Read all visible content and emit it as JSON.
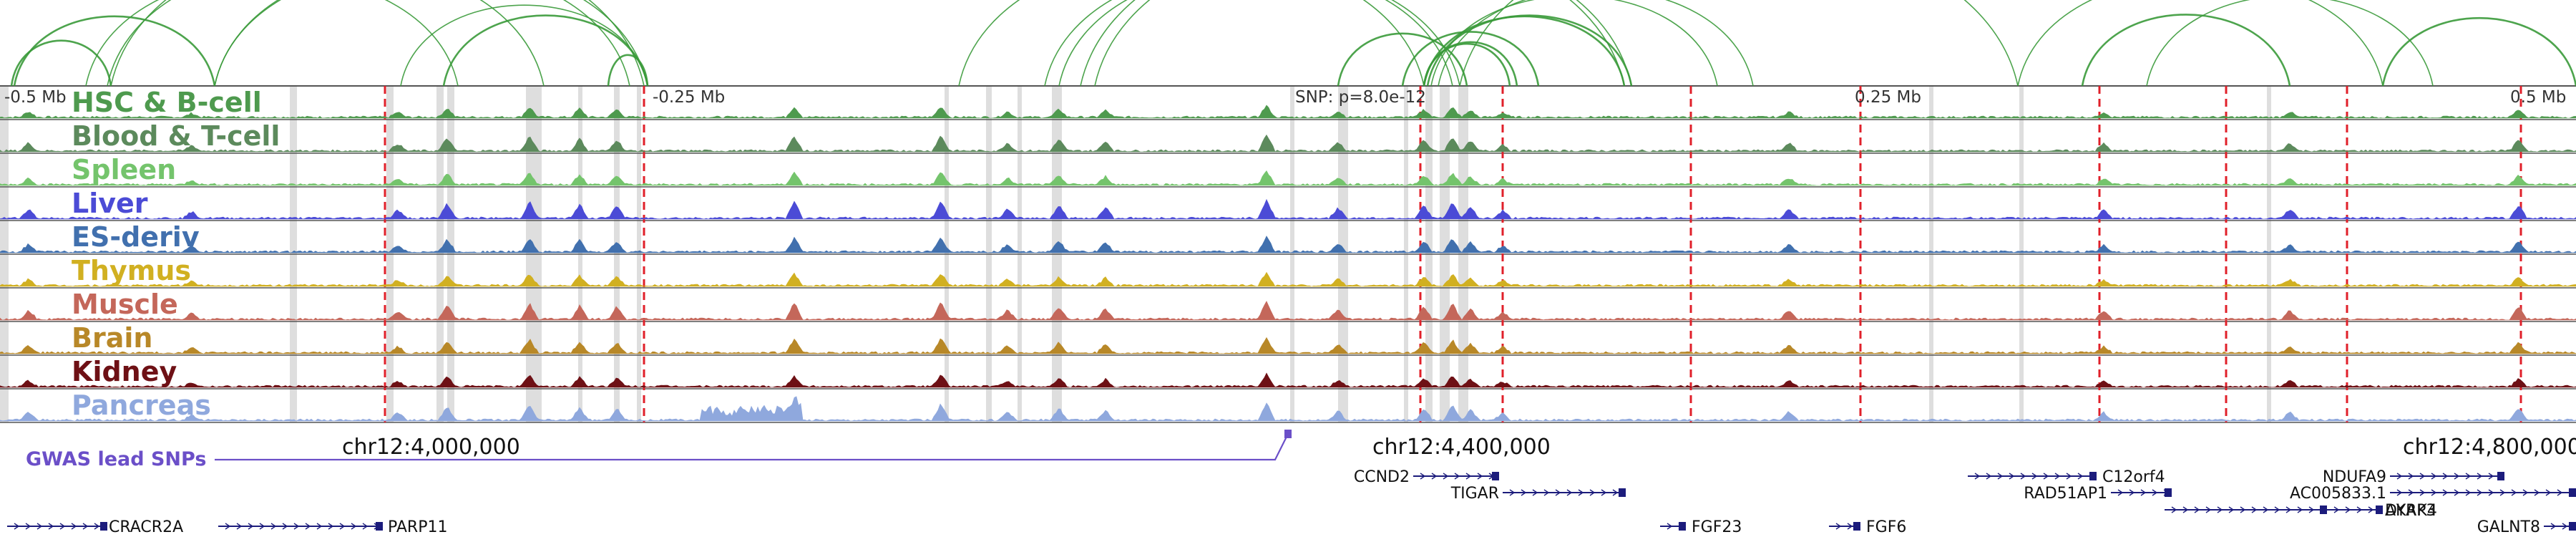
{
  "chart_data": {
    "type": "genome-browser-tracks",
    "scale_labels": [
      "-0.5 Mb",
      "-0.25 Mb",
      "SNP: p=8.0e-12",
      "0.25 Mb",
      "0.5 Mb"
    ],
    "tracks": [
      {
        "name": "HSC & B-cell",
        "color": "#4e9a4e"
      },
      {
        "name": "Blood & T-cell",
        "color": "#5c8a5c"
      },
      {
        "name": "Spleen",
        "color": "#74c46c"
      },
      {
        "name": "Liver",
        "color": "#4b4bd6"
      },
      {
        "name": "ES-deriv",
        "color": "#4170ae"
      },
      {
        "name": "Thymus",
        "color": "#d1b021"
      },
      {
        "name": "Muscle",
        "color": "#c4675a"
      },
      {
        "name": "Brain",
        "color": "#b88828"
      },
      {
        "name": "Kidney",
        "color": "#6e1015"
      },
      {
        "name": "Pancreas",
        "color": "#8fa8dd"
      }
    ],
    "gwas_label": "GWAS lead SNPs",
    "gwas_color": "#6b4fc8",
    "coordinates": [
      "chr12:4,000,000",
      "chr12:4,400,000",
      "chr12:4,800,000"
    ],
    "genes": [
      "CRACR2A",
      "PARP11",
      "CCND2",
      "TIGAR",
      "FGF23",
      "FGF6",
      "C12orf4",
      "RAD51AP1",
      "DYRK4",
      "AKAP3",
      "NDUFA9",
      "AC005833.1",
      "GALNT8"
    ],
    "loop_color": "#3a9a3a",
    "highlight_color": "#d8d8d8",
    "red_marker_color": "#e0202a",
    "gene_color": "#1c1c7c"
  }
}
